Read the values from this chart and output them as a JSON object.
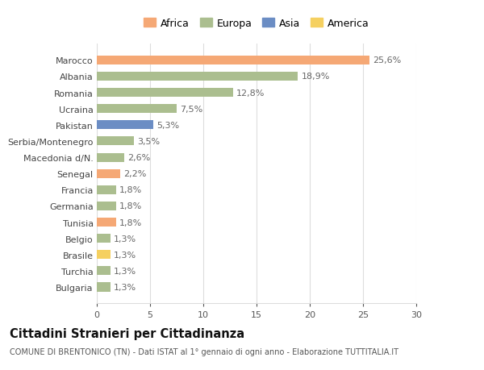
{
  "categories": [
    "Bulgaria",
    "Turchia",
    "Brasile",
    "Belgio",
    "Tunisia",
    "Germania",
    "Francia",
    "Senegal",
    "Macedonia d/N.",
    "Serbia/Montenegro",
    "Pakistan",
    "Ucraina",
    "Romania",
    "Albania",
    "Marocco"
  ],
  "values": [
    1.3,
    1.3,
    1.3,
    1.3,
    1.8,
    1.8,
    1.8,
    2.2,
    2.6,
    3.5,
    5.3,
    7.5,
    12.8,
    18.9,
    25.6
  ],
  "labels": [
    "1,3%",
    "1,3%",
    "1,3%",
    "1,3%",
    "1,8%",
    "1,8%",
    "1,8%",
    "2,2%",
    "2,6%",
    "3,5%",
    "5,3%",
    "7,5%",
    "12,8%",
    "18,9%",
    "25,6%"
  ],
  "continents": [
    "Europa",
    "Europa",
    "America",
    "Europa",
    "Africa",
    "Europa",
    "Europa",
    "Africa",
    "Europa",
    "Europa",
    "Asia",
    "Europa",
    "Europa",
    "Europa",
    "Africa"
  ],
  "continent_colors": {
    "Africa": "#F5A875",
    "Europa": "#ABBE8F",
    "Asia": "#6B8DC4",
    "America": "#F5D060"
  },
  "legend_order": [
    "Africa",
    "Europa",
    "Asia",
    "America"
  ],
  "title": "Cittadini Stranieri per Cittadinanza",
  "subtitle": "COMUNE DI BRENTONICO (TN) - Dati ISTAT al 1° gennaio di ogni anno - Elaborazione TUTTITALIA.IT",
  "xlim": [
    0,
    30
  ],
  "xticks": [
    0,
    5,
    10,
    15,
    20,
    25,
    30
  ],
  "background_color": "#ffffff",
  "grid_color": "#dddddd",
  "bar_height": 0.55,
  "label_fontsize": 8,
  "tick_fontsize": 8,
  "ylabel_fontsize": 8,
  "title_fontsize": 10.5,
  "subtitle_fontsize": 7
}
